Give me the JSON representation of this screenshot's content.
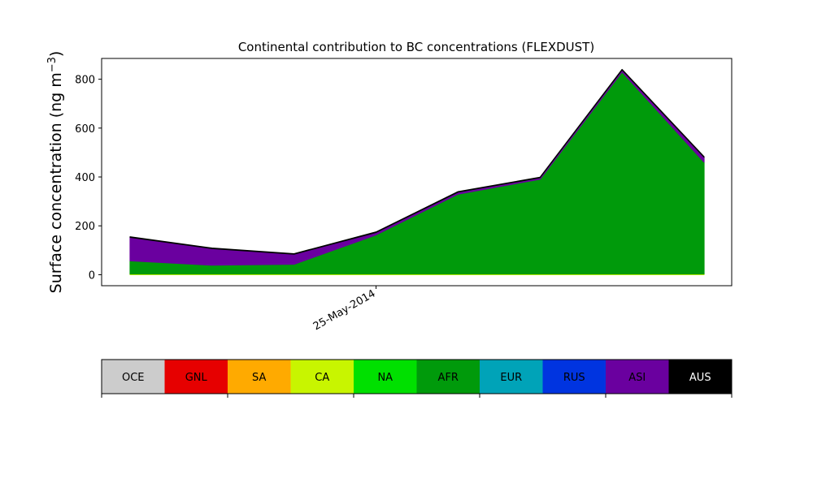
{
  "chart_data": {
    "type": "area",
    "title": "Continental contribution to BC concentrations (FLEXDUST)",
    "ylabel": "Surface concentration (ng m",
    "ylabel_sup": "−3",
    "ylabel_close": ")",
    "xlabel": "",
    "x_tick_labels": [
      {
        "index": 3,
        "label": "25-May-2014"
      }
    ],
    "x_count": 8,
    "ylim": [
      -45,
      885
    ],
    "y_ticks": [
      0,
      200,
      400,
      600,
      800
    ],
    "grid": false,
    "stack_order": [
      "OCE",
      "GNL",
      "SA",
      "CA",
      "NA",
      "AFR",
      "EUR",
      "RUS",
      "ASI",
      "AUS"
    ],
    "series": [
      {
        "name": "OCE",
        "color": "#cccccc",
        "values": [
          0,
          0,
          0,
          0,
          0,
          0,
          0,
          0
        ]
      },
      {
        "name": "GNL",
        "color": "#e60000",
        "values": [
          0,
          0,
          0,
          0,
          0,
          0,
          0,
          0
        ]
      },
      {
        "name": "SA",
        "color": "#ffaa00",
        "values": [
          0,
          0,
          0,
          0,
          0,
          0,
          0,
          0
        ]
      },
      {
        "name": "CA",
        "color": "#c8f500",
        "values": [
          3,
          3,
          3,
          3,
          3,
          3,
          3,
          3
        ]
      },
      {
        "name": "NA",
        "color": "#00e000",
        "values": [
          0,
          0,
          0,
          0,
          0,
          0,
          0,
          0
        ]
      },
      {
        "name": "AFR",
        "color": "#009a0b",
        "values": [
          54,
          36,
          40,
          160,
          327,
          388,
          827,
          458
        ]
      },
      {
        "name": "EUR",
        "color": "#00a3b8",
        "values": [
          0,
          0,
          0,
          0,
          0,
          0,
          0,
          0
        ]
      },
      {
        "name": "RUS",
        "color": "#0034e0",
        "values": [
          0,
          0,
          0,
          0,
          0,
          0,
          0,
          0
        ]
      },
      {
        "name": "ASI",
        "color": "#6a009f",
        "values": [
          96,
          68,
          41,
          10,
          8,
          6,
          8,
          20
        ]
      },
      {
        "name": "AUS",
        "color": "#000000",
        "values": [
          2,
          2,
          2,
          2,
          2,
          2,
          2,
          2
        ]
      }
    ],
    "legend": {
      "placement": "bottom",
      "items": [
        {
          "name": "OCE",
          "color": "#cccccc"
        },
        {
          "name": "GNL",
          "color": "#e60000"
        },
        {
          "name": "SA",
          "color": "#ffaa00"
        },
        {
          "name": "CA",
          "color": "#c8f500"
        },
        {
          "name": "NA",
          "color": "#00e000"
        },
        {
          "name": "AFR",
          "color": "#009a0b"
        },
        {
          "name": "EUR",
          "color": "#00a3b8"
        },
        {
          "name": "RUS",
          "color": "#0034e0"
        },
        {
          "name": "ASI",
          "color": "#6a009f"
        },
        {
          "name": "AUS",
          "color": "#000000"
        }
      ]
    }
  }
}
